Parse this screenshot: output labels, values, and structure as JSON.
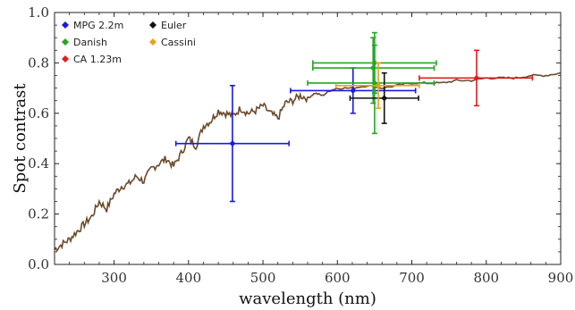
{
  "chart_data": {
    "type": "scatter",
    "xlabel": "wavelength (nm)",
    "ylabel": "Spot contrast",
    "xlim": [
      220,
      900
    ],
    "ylim": [
      0.0,
      1.0
    ],
    "xticks": [
      300,
      400,
      500,
      600,
      700,
      800,
      900
    ],
    "yticks": [
      0.0,
      0.2,
      0.4,
      0.6,
      0.8,
      1.0
    ],
    "ytick_labels": [
      "0.0",
      "0.2",
      "0.4",
      "0.6",
      "0.8",
      "1.0"
    ],
    "grid": false,
    "legend_position": "top-left",
    "legend": [
      {
        "name": "MPG 2.2m",
        "color": "#1a1adf"
      },
      {
        "name": "Euler",
        "color": "#111111"
      },
      {
        "name": "Danish",
        "color": "#22a822"
      },
      {
        "name": "Cassini",
        "color": "#e8a21a"
      },
      {
        "name": "CA 1.23m",
        "color": "#e01e1e"
      }
    ],
    "curve": {
      "color": "#6b4a2b",
      "points": [
        [
          220,
          0.06
        ],
        [
          230,
          0.08
        ],
        [
          240,
          0.1
        ],
        [
          250,
          0.13
        ],
        [
          260,
          0.16
        ],
        [
          270,
          0.19
        ],
        [
          280,
          0.25
        ],
        [
          290,
          0.22
        ],
        [
          300,
          0.28
        ],
        [
          310,
          0.31
        ],
        [
          320,
          0.32
        ],
        [
          330,
          0.35
        ],
        [
          340,
          0.33
        ],
        [
          350,
          0.38
        ],
        [
          360,
          0.4
        ],
        [
          370,
          0.42
        ],
        [
          380,
          0.39
        ],
        [
          390,
          0.44
        ],
        [
          400,
          0.5
        ],
        [
          410,
          0.47
        ],
        [
          420,
          0.55
        ],
        [
          430,
          0.57
        ],
        [
          440,
          0.61
        ],
        [
          450,
          0.6
        ],
        [
          460,
          0.59
        ],
        [
          470,
          0.62
        ],
        [
          480,
          0.6
        ],
        [
          490,
          0.61
        ],
        [
          500,
          0.63
        ],
        [
          510,
          0.6
        ],
        [
          520,
          0.58
        ],
        [
          530,
          0.64
        ],
        [
          540,
          0.65
        ],
        [
          550,
          0.67
        ],
        [
          560,
          0.66
        ],
        [
          570,
          0.68
        ],
        [
          580,
          0.67
        ],
        [
          590,
          0.69
        ],
        [
          600,
          0.7
        ],
        [
          620,
          0.7
        ],
        [
          640,
          0.71
        ],
        [
          660,
          0.7
        ],
        [
          680,
          0.71
        ],
        [
          700,
          0.72
        ],
        [
          720,
          0.72
        ],
        [
          740,
          0.72
        ],
        [
          760,
          0.73
        ],
        [
          780,
          0.73
        ],
        [
          800,
          0.74
        ],
        [
          820,
          0.74
        ],
        [
          840,
          0.74
        ],
        [
          860,
          0.75
        ],
        [
          880,
          0.75
        ],
        [
          900,
          0.76
        ]
      ]
    },
    "series": [
      {
        "name": "MPG 2.2m",
        "color": "#1a1adf",
        "points": [
          {
            "x": 459,
            "y": 0.48,
            "xerr": [
              383,
              535
            ],
            "yerr": [
              0.25,
              0.71
            ]
          },
          {
            "x": 621,
            "y": 0.69,
            "xerr": [
              537,
              705
            ],
            "yerr": [
              0.6,
              0.78
            ]
          }
        ]
      },
      {
        "name": "Danish",
        "color": "#22a822",
        "points": [
          {
            "x": 650,
            "y": 0.8,
            "xerr": [
              567,
              733
            ],
            "yerr": [
              0.68,
              0.92
            ]
          },
          {
            "x": 648,
            "y": 0.78,
            "xerr": [
              567,
              730
            ],
            "yerr": [
              0.64,
              0.9
            ]
          },
          {
            "x": 650,
            "y": 0.72,
            "xerr": [
              560,
              730
            ],
            "yerr": [
              0.52,
              0.87
            ]
          }
        ]
      },
      {
        "name": "CA 1.23m",
        "color": "#e01e1e",
        "points": [
          {
            "x": 787,
            "y": 0.74,
            "xerr": [
              710,
              862
            ],
            "yerr": [
              0.63,
              0.85
            ]
          }
        ]
      },
      {
        "name": "Euler",
        "color": "#111111",
        "points": [
          {
            "x": 663,
            "y": 0.66,
            "xerr": [
              617,
              709
            ],
            "yerr": [
              0.56,
              0.76
            ]
          }
        ]
      },
      {
        "name": "Cassini",
        "color": "#e8a21a",
        "points": [
          {
            "x": 655,
            "y": 0.71,
            "xerr": [
              598,
              710
            ],
            "yerr": [
              0.62,
              0.8
            ]
          }
        ]
      }
    ]
  }
}
